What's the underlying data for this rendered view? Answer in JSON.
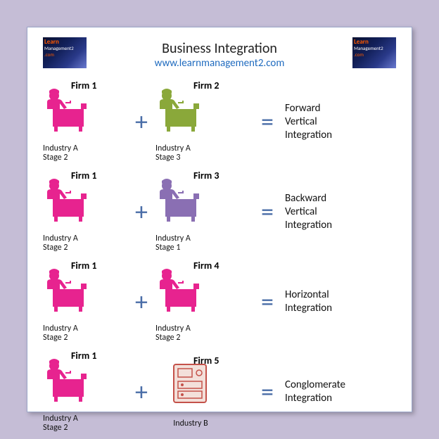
{
  "title": "Business Integration",
  "url": "www.learnmanagement2.com",
  "colors": {
    "background": "#c5bdd6",
    "card_bg": "#ffffff",
    "card_border": "#9aa6c9",
    "title_color": "#222222",
    "url_color": "#1f6bbf",
    "operator_color": "#4a6da7",
    "magenta": "#e7238f",
    "olive": "#8aa83a",
    "purple": "#8a6fb3",
    "server_fill": "#f3e0da",
    "server_stroke": "#c4524a"
  },
  "rows": [
    {
      "left": {
        "firm": "Firm 1",
        "caption": "Industry A\nStage 2",
        "color": "#e7238f",
        "icon": "worker"
      },
      "right": {
        "firm": "Firm 2",
        "caption": "Industry A\nStage 3",
        "color": "#8aa83a",
        "icon": "worker"
      },
      "result": "Forward\nVertical\nIntegration"
    },
    {
      "left": {
        "firm": "Firm 1",
        "caption": "Industry A\nStage 2",
        "color": "#e7238f",
        "icon": "worker"
      },
      "right": {
        "firm": "Firm 3",
        "caption": "Industry A\nStage 1",
        "color": "#8a6fb3",
        "icon": "worker"
      },
      "result": "Backward\nVertical\nIntegration"
    },
    {
      "left": {
        "firm": "Firm 1",
        "caption": "Industry A\nStage 2",
        "color": "#e7238f",
        "icon": "worker"
      },
      "right": {
        "firm": "Firm 4",
        "caption": "Industry A\nStage 2",
        "color": "#e7238f",
        "icon": "worker"
      },
      "result": "Horizontal\nIntegration"
    },
    {
      "left": {
        "firm": "Firm 1",
        "caption": "Industry A\nStage 2",
        "color": "#e7238f",
        "icon": "worker"
      },
      "right": {
        "firm": "Firm 5",
        "caption": "Industry B",
        "color": "#c4524a",
        "icon": "server"
      },
      "result": "Conglomerate\nIntegration"
    }
  ],
  "operators": {
    "plus": "+",
    "equals": "="
  }
}
